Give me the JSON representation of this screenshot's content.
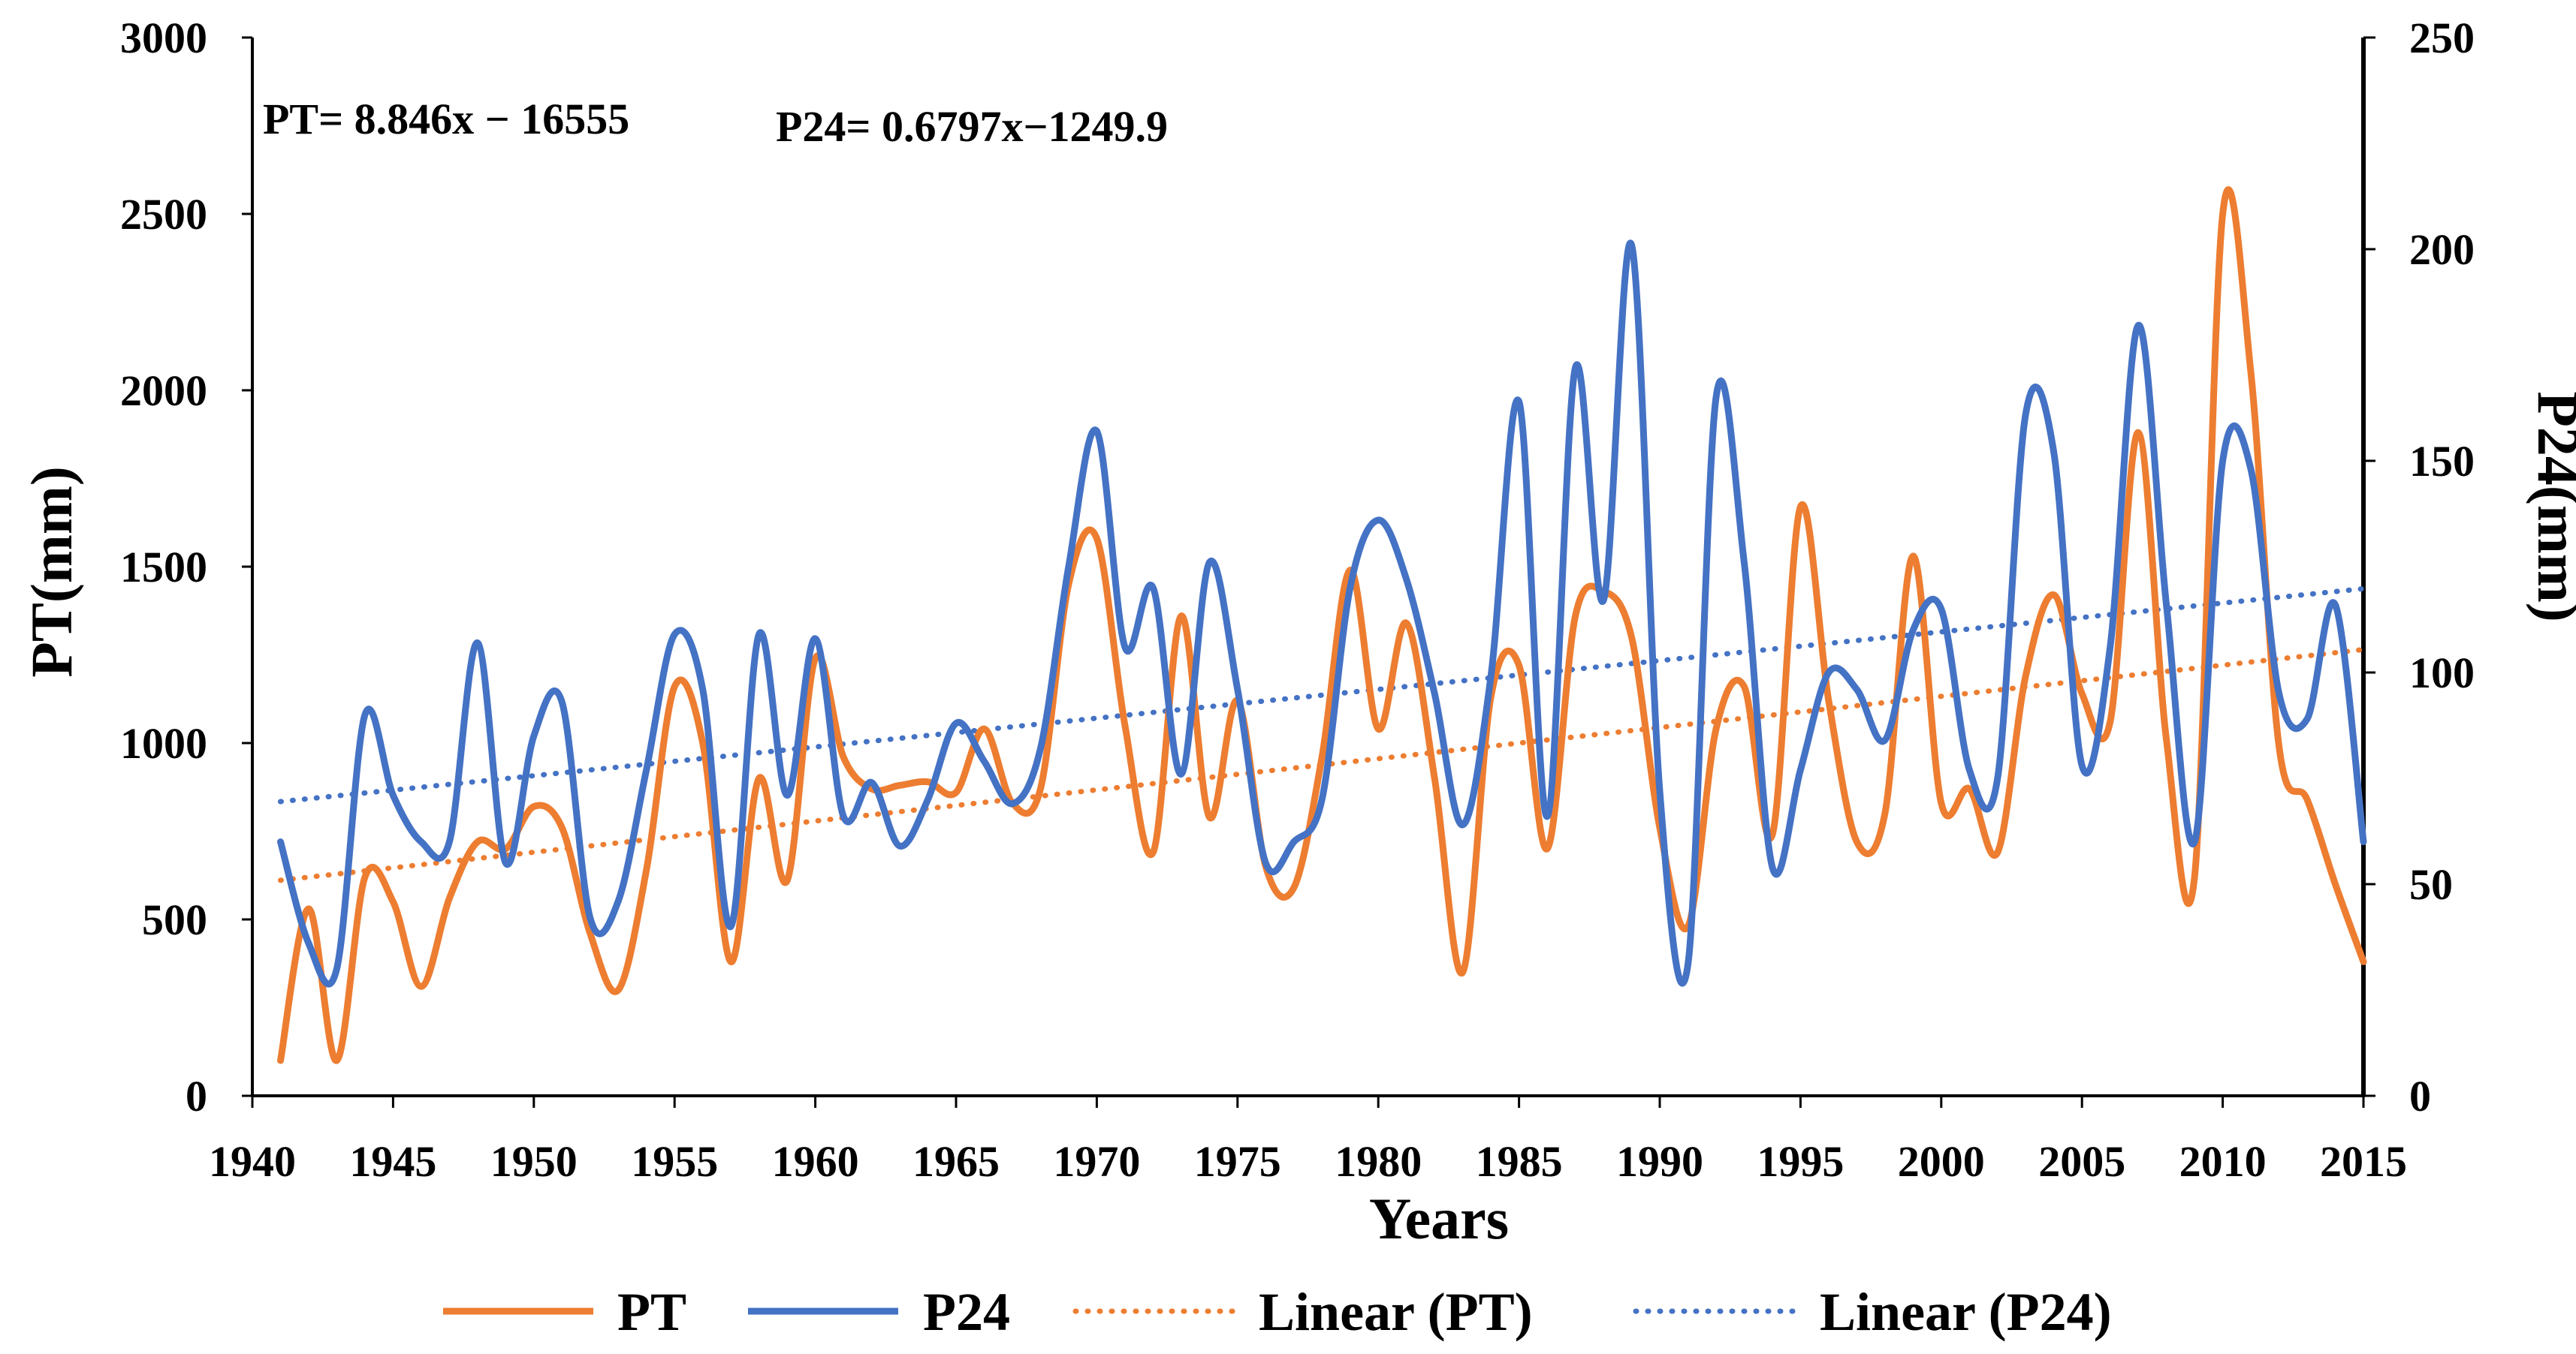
{
  "chart_data": {
    "type": "line",
    "xlabel": "Years",
    "ylabel": "PT(mm)",
    "y2label": "P24(mm)",
    "xlim": [
      1940,
      2015
    ],
    "ylim": [
      0,
      3000
    ],
    "y2lim": [
      0,
      250
    ],
    "x_ticks": [
      1940,
      1945,
      1950,
      1955,
      1960,
      1965,
      1970,
      1975,
      1980,
      1985,
      1990,
      1995,
      2000,
      2005,
      2010,
      2015
    ],
    "y_ticks": [
      0,
      500,
      1000,
      1500,
      2000,
      2500,
      3000
    ],
    "y2_ticks": [
      0,
      50,
      100,
      150,
      200,
      250
    ],
    "equations": {
      "pt": "PT= 8.846x − 16555",
      "p24": "P24= 0.6797x−1249.9"
    },
    "colors": {
      "pt": "#ED7D31",
      "p24": "#4472C4"
    },
    "series": [
      {
        "name": "PT",
        "axis": "left",
        "x": [
          1941,
          1942,
          1943,
          1944,
          1945,
          1946,
          1947,
          1948,
          1949,
          1950,
          1951,
          1952,
          1953,
          1954,
          1955,
          1956,
          1957,
          1958,
          1959,
          1960,
          1961,
          1962,
          1963,
          1964,
          1965,
          1966,
          1967,
          1968,
          1969,
          1970,
          1971,
          1972,
          1973,
          1974,
          1975,
          1976,
          1977,
          1978,
          1979,
          1980,
          1981,
          1982,
          1983,
          1984,
          1985,
          1986,
          1987,
          1988,
          1989,
          1990,
          1991,
          1992,
          1993,
          1994,
          1995,
          1996,
          1997,
          1998,
          1999,
          2000,
          2001,
          2002,
          2003,
          2004,
          2005,
          2006,
          2007,
          2008,
          2009,
          2010,
          2011,
          2012,
          2013,
          2014,
          2015
        ],
        "values": [
          100,
          530,
          100,
          620,
          550,
          310,
          560,
          720,
          700,
          820,
          760,
          460,
          300,
          640,
          1160,
          1000,
          380,
          900,
          610,
          1240,
          960,
          870,
          880,
          890,
          860,
          1040,
          830,
          870,
          1450,
          1580,
          1050,
          690,
          1360,
          790,
          1120,
          650,
          590,
          960,
          1490,
          1040,
          1340,
          900,
          350,
          1130,
          1220,
          700,
          1360,
          1430,
          1300,
          760,
          480,
          1040,
          1160,
          740,
          1670,
          1120,
          720,
          800,
          1530,
          830,
          870,
          690,
          1190,
          1420,
          1140,
          1060,
          1880,
          1010,
          620,
          2500,
          2050,
          990,
          840,
          600,
          380
        ]
      },
      {
        "name": "P24",
        "axis": "right",
        "x": [
          1941,
          1942,
          1943,
          1944,
          1945,
          1946,
          1947,
          1948,
          1949,
          1950,
          1951,
          1952,
          1953,
          1954,
          1955,
          1956,
          1957,
          1958,
          1959,
          1960,
          1961,
          1962,
          1963,
          1964,
          1965,
          1966,
          1967,
          1968,
          1969,
          1970,
          1971,
          1972,
          1973,
          1974,
          1975,
          1976,
          1977,
          1978,
          1979,
          1980,
          1981,
          1982,
          1983,
          1984,
          1985,
          1986,
          1987,
          1988,
          1989,
          1990,
          1991,
          1992,
          1993,
          1994,
          1995,
          1996,
          1997,
          1998,
          1999,
          2000,
          2001,
          2002,
          2003,
          2004,
          2005,
          2006,
          2007,
          2008,
          2009,
          2010,
          2011,
          2012,
          2013,
          2014,
          2015
        ],
        "values": [
          60,
          36,
          30,
          90,
          71,
          60,
          60,
          107,
          55,
          85,
          93,
          42,
          46,
          77,
          109,
          96,
          40,
          109,
          71,
          108,
          66,
          74,
          59,
          70,
          88,
          79,
          69,
          82,
          125,
          157,
          106,
          120,
          76,
          126,
          96,
          55,
          60,
          70,
          120,
          136,
          122,
          95,
          64,
          99,
          164,
          66,
          172,
          117,
          201,
          72,
          31,
          165,
          126,
          54,
          77,
          100,
          96,
          84,
          110,
          115,
          77,
          75,
          161,
          152,
          78,
          106,
          182,
          116,
          60,
          150,
          148,
          95,
          89,
          116,
          60
        ]
      },
      {
        "name": "Linear (PT)",
        "axis": "left",
        "style": "dotted",
        "x": [
          1941,
          2015
        ],
        "values": [
          611,
          1265
        ]
      },
      {
        "name": "Linear (P24)",
        "axis": "right",
        "style": "dotted",
        "x": [
          1941,
          2015
        ],
        "values": [
          69.5,
          119.8
        ]
      }
    ],
    "legend": [
      {
        "label": "PT",
        "style": "solid",
        "color": "#ED7D31"
      },
      {
        "label": "P24",
        "style": "solid",
        "color": "#4472C4"
      },
      {
        "label": "Linear (PT)",
        "style": "dotted",
        "color": "#ED7D31"
      },
      {
        "label": "Linear (P24)",
        "style": "dotted",
        "color": "#4472C4"
      }
    ],
    "legend_position": "bottom"
  }
}
